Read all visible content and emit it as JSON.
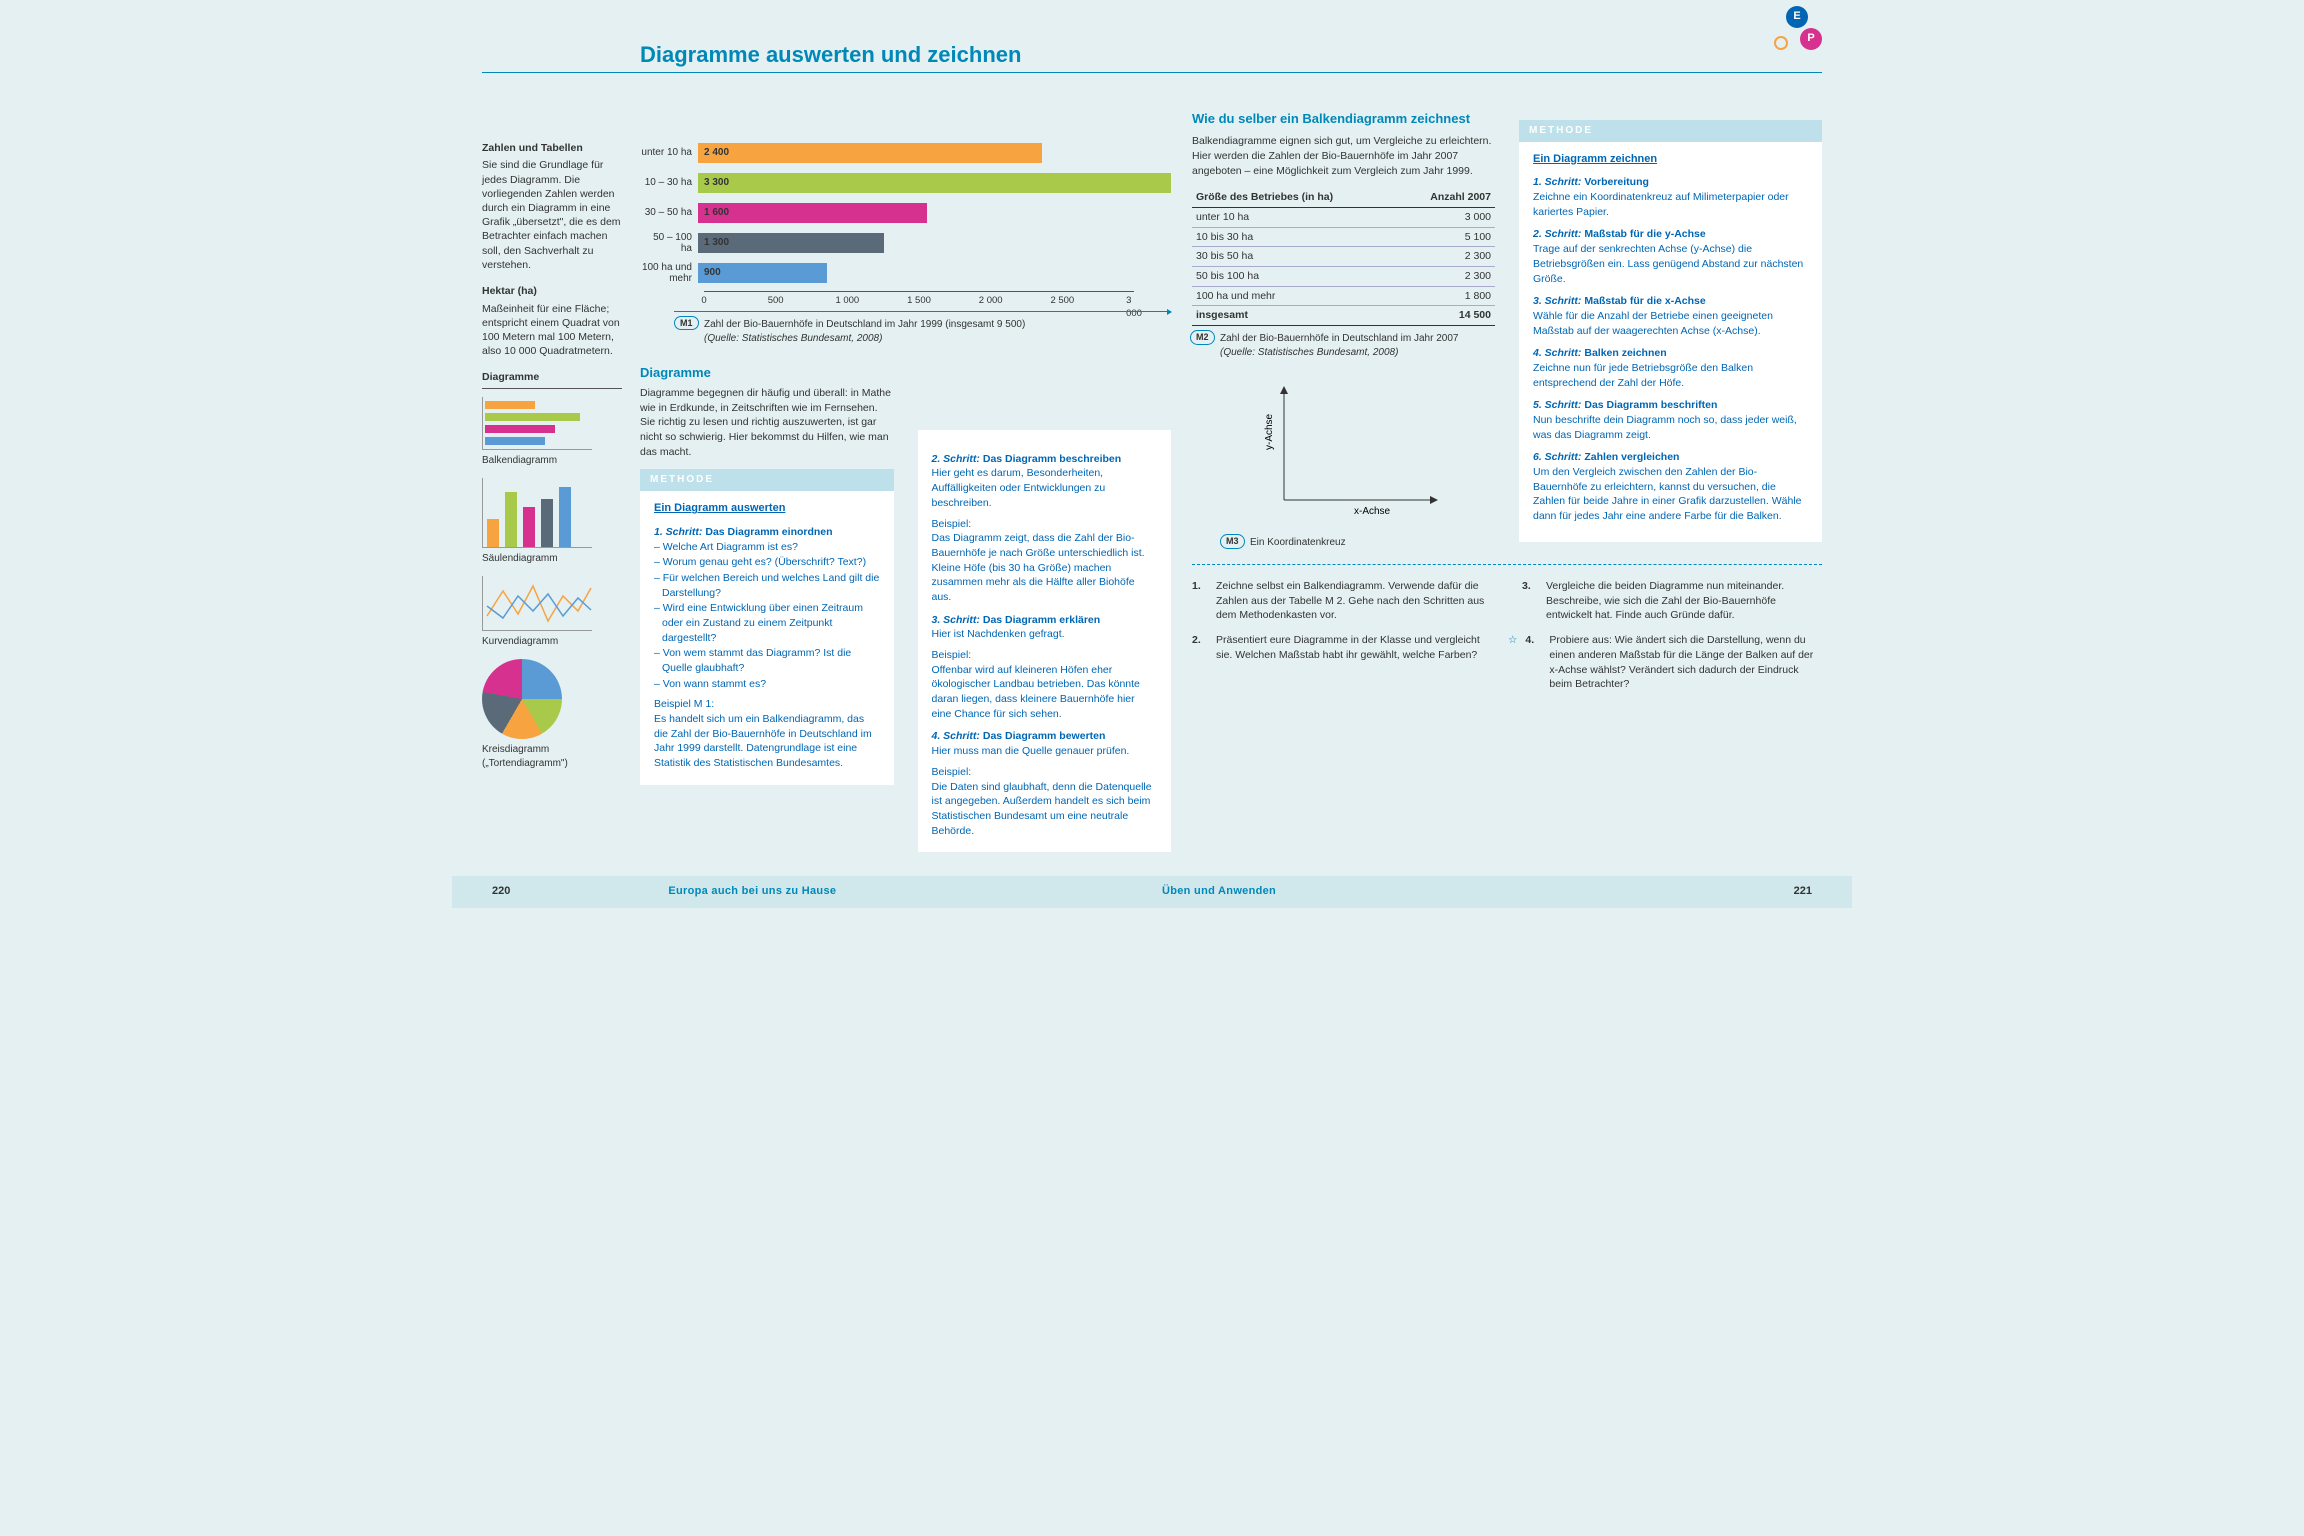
{
  "page_title": "Diagramme auswerten und zeichnen",
  "badges": {
    "e": "E",
    "p": "P"
  },
  "sidebar": {
    "s1_title": "Zahlen und Tabellen",
    "s1_text": "Sie sind die Grundlage für jedes Diagramm. Die vorliegenden Zahlen werden durch ein Diagramm in eine Grafik „übersetzt\", die es dem Betrachter einfach machen soll, den Sachverhalt zu verstehen.",
    "s2_title": "Hektar (ha)",
    "s2_text": "Maßeinheit für eine Fläche; entspricht einem Quadrat von 100 Metern mal 100 Metern, also 10 000 Quadratmetern.",
    "diag_heading": "Diagramme",
    "d1": "Balkendiagramm",
    "d2": "Säulendiagramm",
    "d3": "Kurvendiagramm",
    "d4": "Kreisdiagramm („Tortendiagramm\")"
  },
  "barchart": {
    "type": "bar",
    "max": 3300,
    "axis_max": 3000,
    "ticks": [
      0,
      500,
      1000,
      1500,
      2000,
      2500,
      3000
    ],
    "rows": [
      {
        "label": "unter 10 ha",
        "value": 2400,
        "color": "#f7a440"
      },
      {
        "label": "10 – 30 ha",
        "value": 3300,
        "color": "#a8c94a"
      },
      {
        "label": "30 – 50 ha",
        "value": 1600,
        "color": "#d6318f"
      },
      {
        "label": "50 – 100 ha",
        "value": 1300,
        "color": "#5a6a78"
      },
      {
        "label": "100 ha und mehr",
        "value": 900,
        "color": "#5a9bd5"
      }
    ],
    "m_label": "M1",
    "caption": "Zahl der Bio-Bauernhöfe in Deutschland im Jahr 1999 (insgesamt 9 500)",
    "source": "(Quelle: Statistisches Bundesamt, 2008)"
  },
  "diagramme_section": {
    "heading": "Diagramme",
    "text": "Diagramme begegnen dir häufig und überall: in Mathe wie in Erdkunde, in Zeitschriften wie im Fernsehen. Sie richtig zu lesen und richtig auszuwerten, ist gar nicht so schwierig. Hier bekommst du Hilfen, wie man das macht."
  },
  "methode_left": {
    "header": "METHODE",
    "title": "Ein Diagramm auswerten",
    "step1_title_num": "1. Schritt:",
    "step1_title_name": "Das Diagramm einordnen",
    "step1_items": [
      "Welche Art Diagramm ist es?",
      "Worum genau geht es? (Überschrift? Text?)",
      "Für welchen Bereich und welches Land gilt die Darstellung?",
      "Wird eine Entwicklung über einen Zeitraum oder ein Zustand zu einem Zeitpunkt dargestellt?",
      "Von wem stammt das Diagramm? Ist die Quelle glaubhaft?",
      "Von wann stammt es?"
    ],
    "ex1_label": "Beispiel M 1:",
    "ex1_text": "Es handelt sich um ein Balken­diagramm, das die Zahl der Bio-Bauernhöfe in Deutschland im Jahr 1999 darstellt. Datengrundlage ist eine Statistik des Statistischen Bundesamtes.",
    "step2_title_num": "2. Schritt:",
    "step2_title_name": "Das Diagramm beschreiben",
    "step2_body": "Hier geht es darum, Besonderheiten, Auffälligkeiten oder Entwicklungen zu beschreiben.",
    "ex2_label": "Beispiel:",
    "ex2_text": "Das Diagramm zeigt, dass die Zahl der Bio-Bauernhöfe je nach Größe unterschiedlich ist. Kleine Höfe (bis 30 ha Größe) machen zusammen mehr als die Hälfte aller Biohöfe aus.",
    "step3_title_num": "3. Schritt:",
    "step3_title_name": "Das Diagramm erklären",
    "step3_body": "Hier ist Nachdenken gefragt.",
    "ex3_label": "Beispiel:",
    "ex3_text": "Offenbar wird auf kleineren Höfen eher ökologischer Landbau betrieben. Das könnte daran liegen, dass kleinere Bauernhöfe hier eine Chance für sich sehen.",
    "step4_title_num": "4. Schritt:",
    "step4_title_name": "Das Diagramm bewerten",
    "step4_body": "Hier muss man die Quelle genauer prüfen.",
    "ex4_label": "Beispiel:",
    "ex4_text": "Die Daten sind glaubhaft, denn die Datenquelle ist angegeben. Außerdem handelt es sich beim Statistischen Bundesamt um eine neutrale Behörde."
  },
  "right_page": {
    "heading": "Wie du selber ein Balkendiagramm zeichnest",
    "intro": "Balkendiagramme eignen sich gut, um Vergleiche zu erleichtern.\nHier werden die Zahlen der Bio-Bauern­höfe im Jahr 2007 angeboten – eine Möglichkeit zum Vergleich zum Jahr 1999.",
    "table_h1": "Größe des Betriebes (in ha)",
    "table_h2": "Anzahl 2007",
    "rows": [
      {
        "a": "unter 10 ha",
        "b": "3 000"
      },
      {
        "a": "10 bis 30 ha",
        "b": "5 100"
      },
      {
        "a": "30 bis 50 ha",
        "b": "2 300"
      },
      {
        "a": "50 bis 100 ha",
        "b": "2 300"
      },
      {
        "a": "100 ha und mehr",
        "b": "1 800"
      }
    ],
    "total_a": "insgesamt",
    "total_b": "14 500",
    "m2": "M2",
    "m2_caption": "Zahl der Bio-Bauernhöfe in Deutschland im Jahr 2007",
    "m2_source": "(Quelle: Statistisches Bundesamt, 2008)",
    "m3": "M3",
    "m3_caption": "Ein Koordinatenkreuz",
    "y_label": "y-Achse",
    "x_label": "x-Achse"
  },
  "methode_right": {
    "header": "METHODE",
    "title": "Ein Diagramm zeichnen",
    "steps": [
      {
        "num": "1. Schritt:",
        "name": "Vorbereitung",
        "body": "Zeichne ein Koordinatenkreuz auf Milimeterpapier oder kariertes Papier."
      },
      {
        "num": "2. Schritt:",
        "name": "Maßstab für die y-Achse",
        "body": "Trage auf der senkrechten Achse (y-Achse) die Betriebsgrößen ein. Lass genügend Abstand zur nächsten Größe."
      },
      {
        "num": "3. Schritt:",
        "name": "Maßstab für die x-Achse",
        "body": "Wähle für die Anzahl der Betriebe einen geeigneten Maßstab auf der waagerechten Achse (x-Achse)."
      },
      {
        "num": "4. Schritt:",
        "name": "Balken zeichnen",
        "body": "Zeichne nun für jede Betriebsgröße den Balken entsprechend der Zahl der Höfe."
      },
      {
        "num": "5. Schritt:",
        "name": "Das Diagramm beschriften",
        "body": "Nun beschrifte dein Diagramm noch so, dass jeder weiß, was das Diagramm zeigt."
      },
      {
        "num": "6. Schritt:",
        "name": "Zahlen vergleichen",
        "body": "Um den Vergleich zwischen den Zahlen der Bio-Bauernhöfe zu erleichtern, kannst du versuchen, die Zahlen für beide Jahre in einer Grafik darzustellen. Wähle dann für jedes Jahr eine andere Farbe für die Balken."
      }
    ]
  },
  "exercises": {
    "e1_num": "1.",
    "e1": "Zeichne selbst ein Balkendiagramm. Verwende dafür die Zahlen aus der Tabelle M 2. Gehe nach den Schritten aus dem Methodenkasten vor.",
    "e2_num": "2.",
    "e2": "Präsentiert eure Diagramme in der Klasse und vergleicht sie. Welchen Maßstab habt ihr gewählt, welche Farben?",
    "e3_num": "3.",
    "e3": "Vergleiche die beiden Diagramme nun miteinander. Beschreibe, wie sich die Zahl der Bio-Bauernhöfe entwickelt hat. Finde auch Gründe dafür.",
    "e4_num": "4.",
    "e4": "Probiere aus: Wie ändert sich die Darstellung, wenn du einen anderen Maßstab für die Länge der Balken auf der x-Achse wählst? Verändert sich dadurch der Eindruck beim Betrachter?",
    "star": "☆"
  },
  "footer": {
    "left_num": "220",
    "left_title": "Europa auch bei uns zu Hause",
    "right_title": "Üben und Anwenden",
    "right_num": "221"
  },
  "mini_icons": {
    "hbar_colors": [
      "#f7a440",
      "#a8c94a",
      "#d6318f",
      "#5a9bd5"
    ],
    "hbar_widths": [
      50,
      95,
      70,
      60
    ],
    "vbar_colors": [
      "#f7a440",
      "#a8c94a",
      "#d6318f",
      "#5a6a78",
      "#5a9bd5"
    ],
    "vbar_heights": [
      28,
      55,
      40,
      48,
      60
    ],
    "pie_gradient": "conic-gradient(#5a9bd5 0 90deg, #a8c94a 90deg 150deg, #f7a440 150deg 210deg, #5a6a78 210deg 280deg, #d6318f 280deg 360deg)"
  }
}
